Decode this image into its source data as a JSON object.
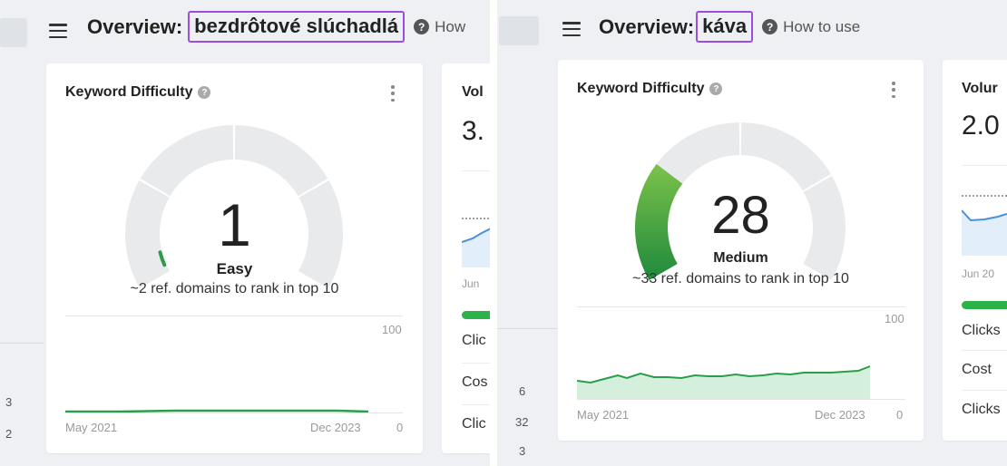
{
  "left": {
    "overview_label": "Overview:",
    "keyword": "bezdrôtové slúchadlá",
    "help_label": "How",
    "kd_card": {
      "title": "Keyword Difficulty",
      "value": "1",
      "value_number": 1,
      "level": "Easy",
      "description": "~2 ref. domains to rank in top 10",
      "axis_max": "100",
      "axis_min": "0",
      "date_start": "May 2021",
      "date_end": "Dec 2023"
    },
    "volume_card": {
      "title": "Vol",
      "value": "3.",
      "date_label": "Jun",
      "rows": [
        "Clic",
        "Cos",
        "Clic"
      ]
    },
    "side_numbers": [
      "3",
      "2"
    ]
  },
  "right": {
    "overview_label": "Overview:",
    "keyword": "káva",
    "help_label": "How to use",
    "kd_card": {
      "title": "Keyword Difficulty",
      "value": "28",
      "value_number": 28,
      "level": "Medium",
      "description": "~33 ref. domains to rank in top 10",
      "axis_max": "100",
      "axis_min": "0",
      "date_start": "May 2021",
      "date_end": "Dec 2023"
    },
    "volume_card": {
      "title": "Volur",
      "value": "2.0",
      "date_label": "Jun 20",
      "rows": [
        "Clicks",
        "Cost",
        "Clicks"
      ]
    },
    "side_numbers": [
      "6",
      "32",
      "3"
    ]
  },
  "colors": {
    "highlight_box": "#9b4de0",
    "gauge_track": "#e9eaec",
    "kd_green": "#2a9d4a",
    "volume_line": "#4a90d9"
  }
}
